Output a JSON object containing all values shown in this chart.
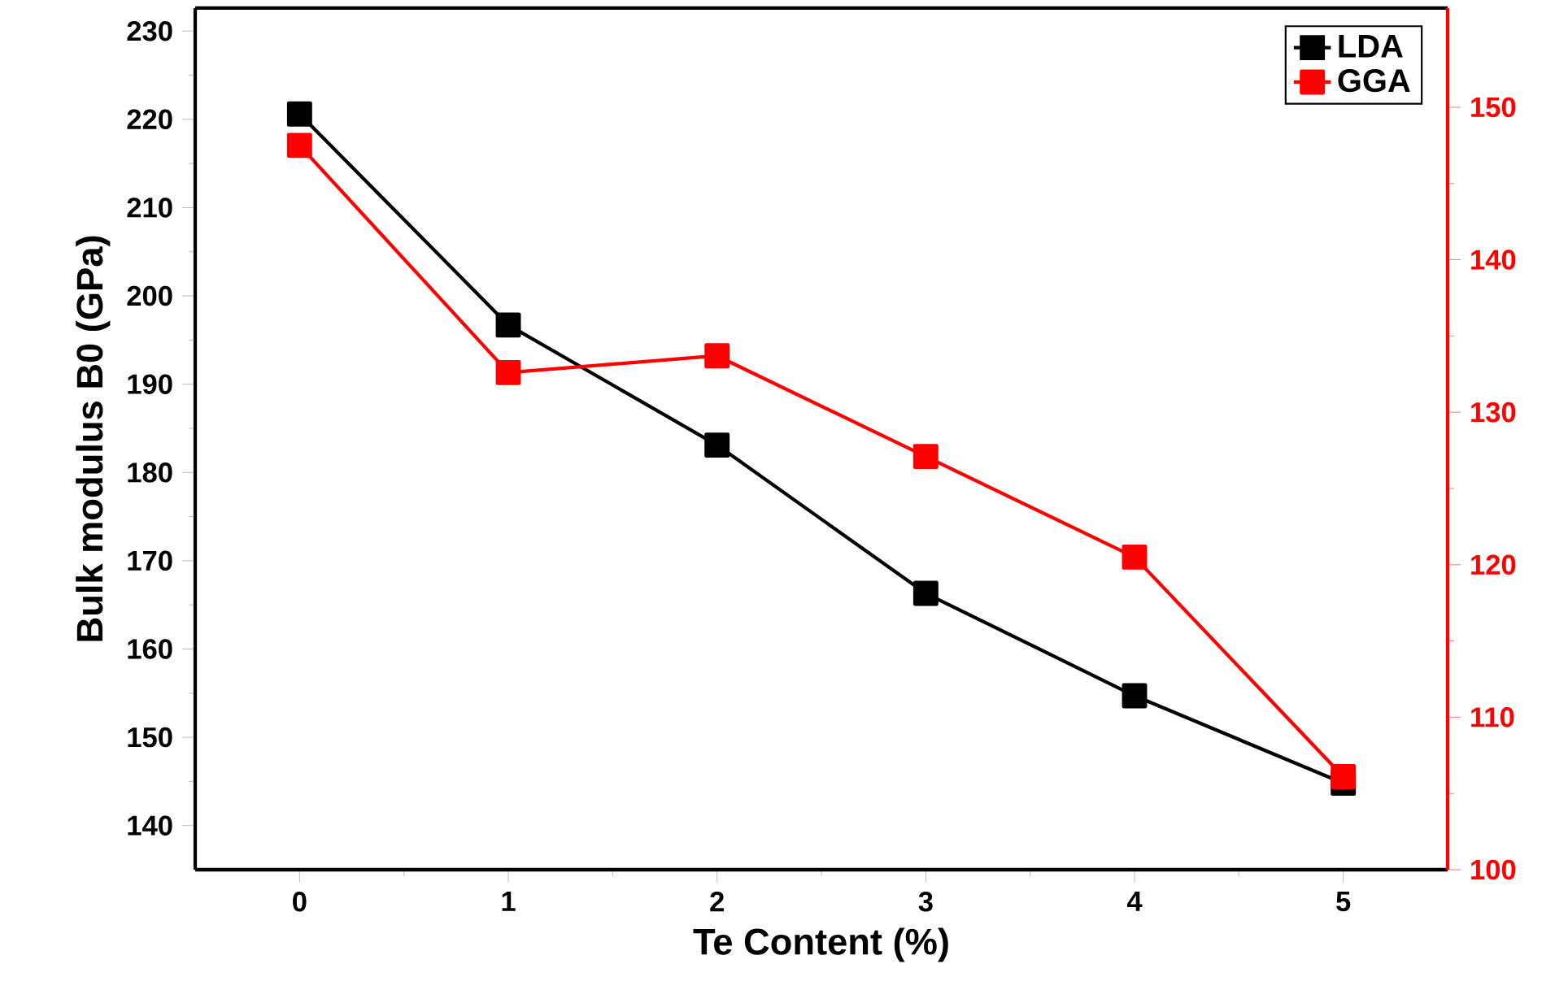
{
  "chart_data": {
    "type": "line",
    "xlabel": "Te Content (%)",
    "ylabel": "Bulk modulus B0 (GPa)",
    "x": [
      0,
      1,
      2,
      3,
      4,
      5
    ],
    "series": [
      {
        "name": "LDA",
        "color": "#000000",
        "values": [
          220.6,
          196.7,
          183.1,
          166.3,
          154.7,
          144.8
        ]
      },
      {
        "name": "GGA",
        "color": "#ff0000",
        "axis": "y2",
        "values": [
          147.5,
          132.6,
          133.7,
          127.1,
          120.5,
          106.1
        ]
      }
    ],
    "xlim": [
      -0.5,
      5.5
    ],
    "xticks": [
      0,
      1,
      2,
      3,
      4,
      5
    ],
    "ylim": [
      135,
      232.6
    ],
    "yticks": [
      140,
      150,
      160,
      170,
      180,
      190,
      200,
      210,
      220,
      230
    ],
    "y2lim": [
      100,
      156.5
    ],
    "y2ticks": [
      100,
      110,
      120,
      130,
      140,
      150
    ],
    "legend": "top right",
    "marker": "square",
    "line_style": "solid",
    "grid": false
  }
}
